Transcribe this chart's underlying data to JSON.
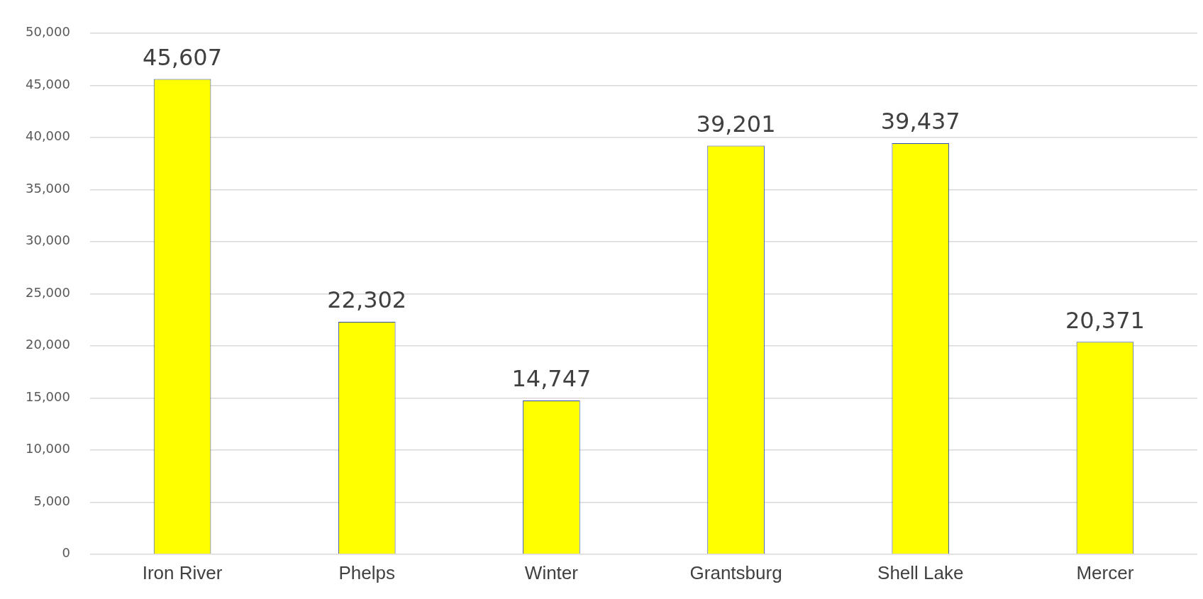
{
  "chart_data": {
    "type": "bar",
    "categories": [
      "Iron River",
      "Phelps",
      "Winter",
      "Grantsburg",
      "Shell Lake",
      "Mercer"
    ],
    "values": [
      45607,
      22302,
      14747,
      39201,
      39437,
      20371
    ],
    "value_labels": [
      "45,607",
      "22,302",
      "14,747",
      "39,201",
      "39,437",
      "20,371"
    ],
    "color": "#ffff00",
    "ylim": [
      0,
      50000
    ],
    "yticks": [
      0,
      {
        "value": 5000,
        "label": "5,000"
      },
      {
        "value": 10000,
        "label": "10,000"
      },
      {
        "value": 15000,
        "label": "15,000"
      },
      {
        "value": 20000,
        "label": "20,000"
      },
      {
        "value": 25000,
        "label": "25,000"
      },
      {
        "value": 30000,
        "label": "30,000"
      },
      {
        "value": 35000,
        "label": "35,000"
      },
      {
        "value": 40000,
        "label": "40,000"
      },
      {
        "value": 45000,
        "label": "45,000"
      },
      {
        "value": 50000,
        "label": "50,000"
      }
    ],
    "grid": "y",
    "legend": false
  }
}
